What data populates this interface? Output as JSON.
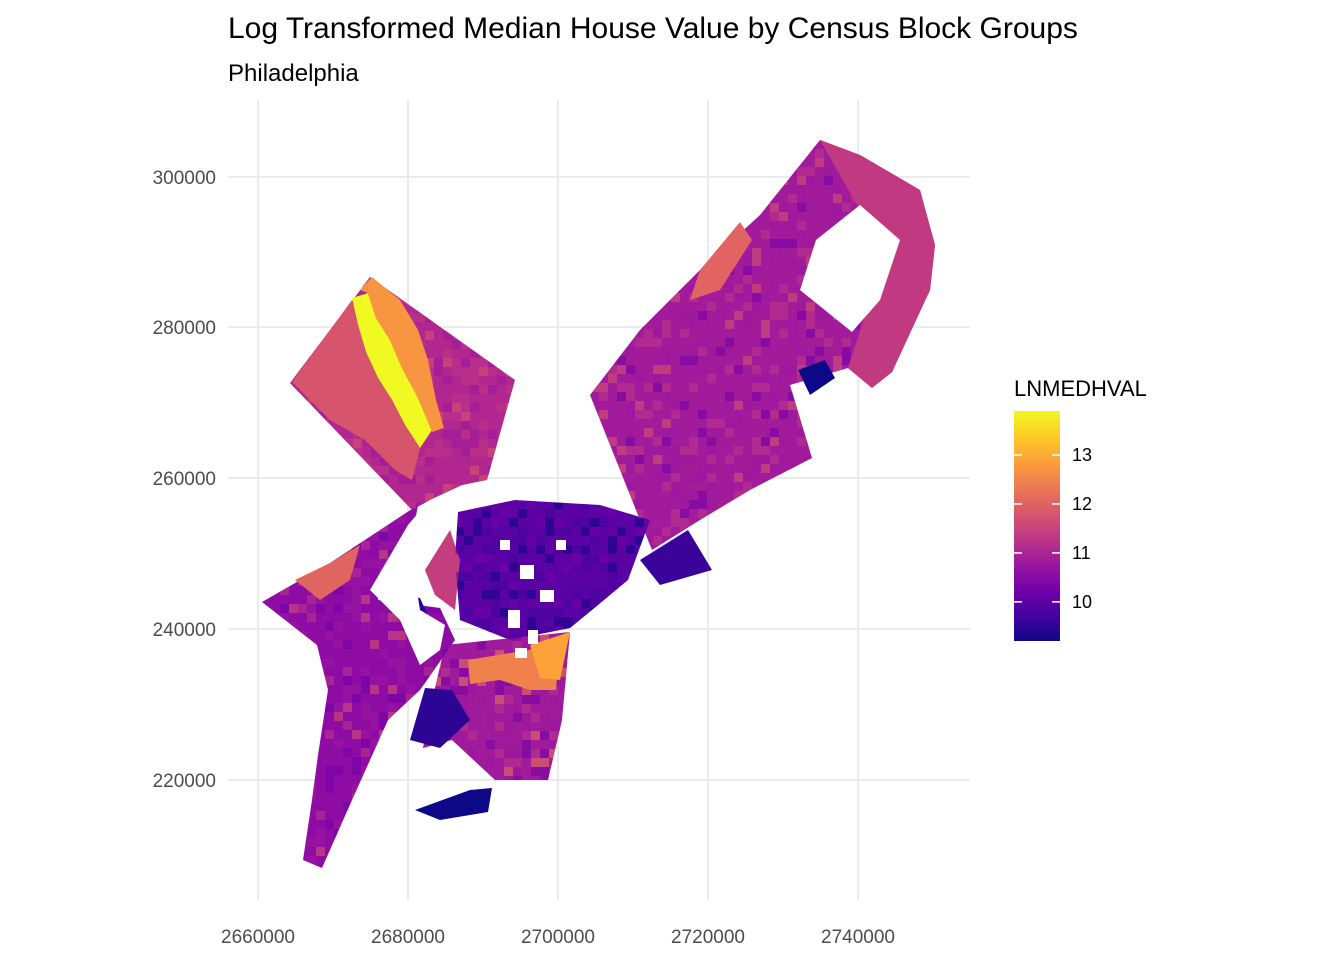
{
  "title": "Log Transformed Median House Value by Census Block Groups",
  "subtitle": "Philadelphia",
  "chart_data": {
    "type": "choropleth",
    "title": "Log Transformed Median House Value by Census Block Groups",
    "subtitle": "Philadelphia",
    "xlim": [
      2651000,
      2755000
    ],
    "ylim": [
      205000,
      310000
    ],
    "x_ticks": [
      2660000,
      2680000,
      2700000,
      2720000,
      2740000
    ],
    "x_tick_labels": [
      "2660000",
      "2680000",
      "2700000",
      "2720000",
      "2740000"
    ],
    "y_ticks": [
      220000,
      240000,
      260000,
      280000,
      300000
    ],
    "y_tick_labels": [
      "220000",
      "240000",
      "260000",
      "280000",
      "300000"
    ],
    "grid": true,
    "legend": {
      "title": "LNMEDHVAL",
      "position": "right",
      "range": [
        9.2,
        13.9
      ],
      "breaks": [
        10,
        11,
        12,
        13
      ],
      "break_labels": [
        "10",
        "11",
        "12",
        "13"
      ],
      "palette": [
        "#0d0887",
        "#46039f",
        "#7201a8",
        "#9c179e",
        "#bd3786",
        "#d8576b",
        "#ed7953",
        "#fb9f3a",
        "#fdca26",
        "#f0f921"
      ]
    }
  }
}
